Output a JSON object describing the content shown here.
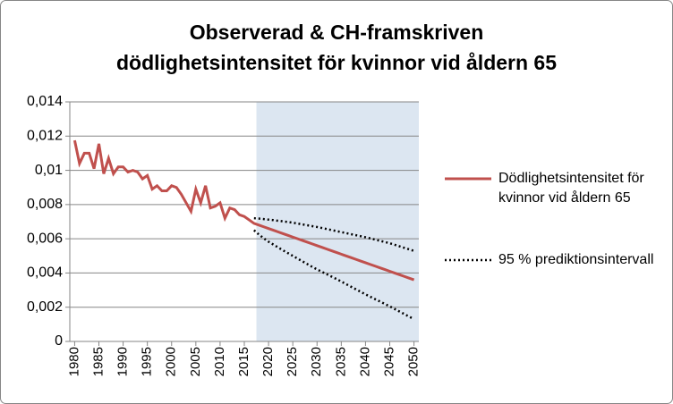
{
  "chart_data": {
    "type": "line",
    "title": [
      "Observerad & CH-framskriven",
      "dödlighetsintensitet för kvinnor vid åldern 65"
    ],
    "x": [
      1980,
      1981,
      1982,
      1983,
      1984,
      1985,
      1986,
      1987,
      1988,
      1989,
      1990,
      1991,
      1992,
      1993,
      1994,
      1995,
      1996,
      1997,
      1998,
      1999,
      2000,
      2001,
      2002,
      2003,
      2004,
      2005,
      2006,
      2007,
      2008,
      2009,
      2010,
      2011,
      2012,
      2013,
      2014,
      2015,
      2016,
      2017,
      2018,
      2019,
      2020,
      2021,
      2022,
      2023,
      2024,
      2025,
      2026,
      2027,
      2028,
      2029,
      2030,
      2031,
      2032,
      2033,
      2034,
      2035,
      2036,
      2037,
      2038,
      2039,
      2040,
      2041,
      2042,
      2043,
      2044,
      2045,
      2046,
      2047,
      2048,
      2049,
      2050
    ],
    "xlim": [
      1979,
      2051
    ],
    "xticks": [
      1980,
      1985,
      1990,
      1995,
      2000,
      2005,
      2010,
      2015,
      2020,
      2025,
      2030,
      2035,
      2040,
      2045,
      2050
    ],
    "ylim": [
      0,
      0.014
    ],
    "yticks": [
      0,
      {
        "value": 0.002,
        "label": "0,002"
      },
      {
        "value": 0.004,
        "label": "0,004"
      },
      {
        "value": 0.006,
        "label": "0,006"
      },
      {
        "value": 0.008,
        "label": "0,008"
      },
      {
        "value": 0.01,
        "label": "0,01"
      },
      {
        "value": 0.012,
        "label": "0,012"
      },
      {
        "value": 0.014,
        "label": "0,014"
      }
    ],
    "grid": true,
    "forecast_region": {
      "xlim": [
        2017.5,
        2051
      ],
      "color": "#dce6f1"
    },
    "series": [
      {
        "name": "Dödlighetsintensitet för kvinnor vid åldern 65",
        "color": "#c0504d",
        "dash": false,
        "values": [
          0.01175,
          0.0104,
          0.011,
          0.011,
          0.0101,
          0.01155,
          0.0098,
          0.0107,
          0.0098,
          0.0102,
          0.0102,
          0.0099,
          0.01,
          0.0099,
          0.0095,
          0.0097,
          0.0089,
          0.0091,
          0.0088,
          0.0088,
          0.0091,
          0.009,
          0.0086,
          0.0081,
          0.0076,
          0.0089,
          0.0081,
          0.0091,
          0.0078,
          0.0079,
          0.0081,
          0.0072,
          0.0078,
          0.0077,
          0.0074,
          0.0073,
          0.0071,
          0.0069,
          0.0068,
          0.0067,
          0.0066,
          0.0065,
          0.0064,
          0.0063,
          0.0062,
          0.0061,
          0.006,
          0.0059,
          0.0058,
          0.0057,
          0.0056,
          0.0055,
          0.0054,
          0.0053,
          0.0052,
          0.0051,
          0.005,
          0.0049,
          0.0048,
          0.0047,
          0.0046,
          0.0045,
          0.0044,
          0.0043,
          0.0042,
          0.0041,
          0.004,
          0.0039,
          0.0038,
          0.0037,
          0.0036
        ]
      },
      {
        "name": "95 % prediktionsintervall",
        "color": "#000000",
        "dash": true,
        "upper": [
          null,
          null,
          null,
          null,
          null,
          null,
          null,
          null,
          null,
          null,
          null,
          null,
          null,
          null,
          null,
          null,
          null,
          null,
          null,
          null,
          null,
          null,
          null,
          null,
          null,
          null,
          null,
          null,
          null,
          null,
          null,
          null,
          null,
          null,
          null,
          null,
          null,
          0.0072,
          0.00718,
          0.00715,
          0.00712,
          0.00709,
          0.00705,
          0.00702,
          0.00698,
          0.00694,
          0.00689,
          0.00684,
          0.00679,
          0.00674,
          0.00669,
          0.00663,
          0.00657,
          0.00651,
          0.00645,
          0.00639,
          0.00633,
          0.00627,
          0.00621,
          0.00615,
          0.00609,
          0.00602,
          0.00595,
          0.00588,
          0.00581,
          0.00574,
          0.00565,
          0.00556,
          0.00547,
          0.00538,
          0.00529
        ],
        "lower": [
          null,
          null,
          null,
          null,
          null,
          null,
          null,
          null,
          null,
          null,
          null,
          null,
          null,
          null,
          null,
          null,
          null,
          null,
          null,
          null,
          null,
          null,
          null,
          null,
          null,
          null,
          null,
          null,
          null,
          null,
          null,
          null,
          null,
          null,
          null,
          null,
          null,
          0.0065,
          0.00625,
          0.00603,
          0.00583,
          0.00566,
          0.00549,
          0.00532,
          0.00516,
          0.005,
          0.00484,
          0.00468,
          0.00452,
          0.00436,
          0.00421,
          0.00407,
          0.00393,
          0.00379,
          0.00365,
          0.0035,
          0.00335,
          0.0032,
          0.00305,
          0.0029,
          0.00275,
          0.00261,
          0.00247,
          0.00233,
          0.00219,
          0.00205,
          0.0019,
          0.00175,
          0.0016,
          0.00145,
          0.0013
        ]
      }
    ]
  }
}
